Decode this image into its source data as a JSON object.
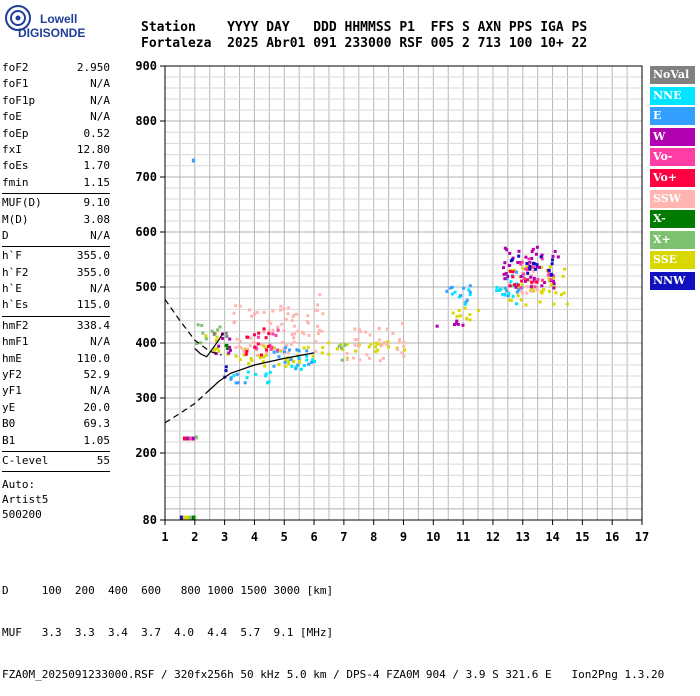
{
  "logo": {
    "line1": "Lowell",
    "line2": "DIGISONDE"
  },
  "header": {
    "labels": [
      "Station",
      "YYYY",
      "DAY",
      "DDD",
      "HHMMSS",
      "P1",
      "FFS",
      "S",
      "AXN",
      "PPS",
      "IGA",
      "PS"
    ],
    "values": [
      "Fortaleza",
      "2025",
      "Abr01",
      "091",
      "233000",
      "RSF",
      "005",
      "2",
      "713",
      "100",
      "10+",
      "22"
    ]
  },
  "params": {
    "group1": [
      {
        "k": "foF2",
        "v": "2.950"
      },
      {
        "k": "foF1",
        "v": "N/A"
      },
      {
        "k": "foF1p",
        "v": "N/A"
      },
      {
        "k": "foE",
        "v": "N/A"
      },
      {
        "k": "foEp",
        "v": "0.52"
      },
      {
        "k": "fxI",
        "v": "12.80"
      },
      {
        "k": "foEs",
        "v": "1.70"
      },
      {
        "k": "fmin",
        "v": "1.15"
      }
    ],
    "group2": [
      {
        "k": "MUF(D)",
        "v": "9.10"
      },
      {
        "k": "M(D)",
        "v": "3.08"
      },
      {
        "k": "D",
        "v": "N/A"
      }
    ],
    "group3": [
      {
        "k": "h`F",
        "v": "355.0"
      },
      {
        "k": "h`F2",
        "v": "355.0"
      },
      {
        "k": "h`E",
        "v": "N/A"
      },
      {
        "k": "h`Es",
        "v": "115.0"
      }
    ],
    "group4": [
      {
        "k": "hmF2",
        "v": "338.4"
      },
      {
        "k": "hmF1",
        "v": "N/A"
      },
      {
        "k": "hmE",
        "v": "110.0"
      },
      {
        "k": "yF2",
        "v": "52.9"
      },
      {
        "k": "yF1",
        "v": "N/A"
      },
      {
        "k": "yE",
        "v": "20.0"
      },
      {
        "k": "B0",
        "v": "69.3"
      },
      {
        "k": "B1",
        "v": "1.05"
      }
    ],
    "group5": [
      {
        "k": "C-level",
        "v": "55"
      }
    ],
    "auto": [
      "Auto:",
      "Artist5",
      "500200"
    ]
  },
  "legend": [
    {
      "label": "NoVal",
      "color": "#808080"
    },
    {
      "label": "NNE",
      "color": "#00e5ff"
    },
    {
      "label": "E",
      "color": "#33a0ff"
    },
    {
      "label": "W",
      "color": "#b000b0"
    },
    {
      "label": "Vo-",
      "color": "#ff3ea5"
    },
    {
      "label": "Vo+",
      "color": "#ff0040"
    },
    {
      "label": "SSW",
      "color": "#ffb6b0"
    },
    {
      "label": "X-",
      "color": "#007a00"
    },
    {
      "label": "X+",
      "color": "#7cc070"
    },
    {
      "label": "SSE",
      "color": "#d8d800"
    },
    {
      "label": "NNW",
      "color": "#1010c0"
    }
  ],
  "footer": {
    "line1": "D     100  200  400  600   800 1000 1500 3000 [km]",
    "line2": "MUF   3.3  3.3  3.4  3.7  4.0  4.4  5.7  9.1 [MHz]",
    "line3": "FZA0M_2025091233000.RSF / 320fx256h 50 kHz 5.0 km / DPS-4 FZA0M 904 / 3.9 S 321.6 E   Ion2Png 1.3.20"
  },
  "chart_data": {
    "type": "scatter",
    "xlim": [
      1,
      17
    ],
    "ylim": [
      80,
      900
    ],
    "x_ticks": [
      1,
      2,
      3,
      4,
      5,
      6,
      7,
      8,
      9,
      10,
      11,
      12,
      13,
      14,
      15,
      16,
      17
    ],
    "y_ticks": [
      80,
      200,
      300,
      400,
      500,
      600,
      700,
      800,
      900
    ],
    "grid": true,
    "series": [
      {
        "name": "SSE",
        "clusters": [
          [
            2.2,
            380,
            2.9,
            420
          ],
          [
            3.0,
            360,
            6.0,
            400
          ],
          [
            6.2,
            375,
            9.0,
            405
          ],
          [
            10.5,
            440,
            11.5,
            470
          ],
          [
            12.3,
            470,
            14.5,
            540
          ]
        ],
        "points": [
          [
            1.6,
            88
          ],
          [
            1.7,
            88
          ]
        ]
      },
      {
        "name": "SSW",
        "clusters": [
          [
            3.2,
            380,
            5.8,
            470
          ],
          [
            6.0,
            370,
            6.3,
            500
          ],
          [
            7.0,
            370,
            7.9,
            430
          ],
          [
            8.0,
            370,
            9.0,
            440
          ],
          [
            12.5,
            490,
            13.5,
            540
          ]
        ],
        "points": []
      },
      {
        "name": "E",
        "clusters": [
          [
            2.8,
            330,
            3.8,
            350
          ],
          [
            4.5,
            355,
            6.0,
            395
          ],
          [
            10.3,
            475,
            11.3,
            505
          ],
          [
            12.2,
            480,
            13.0,
            540
          ]
        ],
        "points": [
          [
            1.9,
            733
          ]
        ]
      },
      {
        "name": "NNE",
        "clusters": [
          [
            3.0,
            330,
            4.5,
            350
          ],
          [
            5.0,
            350,
            6.0,
            380
          ],
          [
            10.5,
            470,
            11.2,
            500
          ],
          [
            12.0,
            470,
            12.8,
            520
          ]
        ],
        "points": []
      },
      {
        "name": "W",
        "clusters": [
          [
            2.5,
            380,
            3.2,
            420
          ],
          [
            10.0,
            430,
            11.0,
            450
          ],
          [
            12.3,
            500,
            14.2,
            580
          ]
        ],
        "points": [
          [
            1.7,
            230
          ],
          [
            1.9,
            230
          ]
        ]
      },
      {
        "name": "Vo-",
        "clusters": [
          [
            4.0,
            390,
            5.0,
            430
          ],
          [
            12.8,
            500,
            14.0,
            560
          ]
        ],
        "points": [
          [
            1.8,
            230
          ]
        ]
      },
      {
        "name": "Vo+",
        "clusters": [
          [
            3.5,
            380,
            4.5,
            430
          ],
          [
            12.5,
            500,
            13.5,
            540
          ]
        ],
        "points": [
          [
            1.6,
            230
          ]
        ]
      },
      {
        "name": "X+",
        "clusters": [
          [
            2.0,
            400,
            2.8,
            440
          ],
          [
            6.5,
            370,
            7.0,
            400
          ]
        ],
        "points": [
          [
            1.8,
            88
          ],
          [
            1.95,
            88
          ],
          [
            2.0,
            232
          ]
        ]
      },
      {
        "name": "X-",
        "clusters": [
          [
            2.8,
            390,
            3.2,
            420
          ]
        ],
        "points": [
          [
            1.9,
            88
          ]
        ]
      },
      {
        "name": "NNW",
        "clusters": [
          [
            12.5,
            520,
            14.0,
            560
          ],
          [
            2.9,
            340,
            3.4,
            360
          ]
        ],
        "points": [
          [
            1.5,
            88
          ]
        ]
      },
      {
        "name": "NoVal",
        "clusters": [
          [
            2.9,
            400,
            3.1,
            430
          ]
        ],
        "points": [
          [
            2.6,
            420
          ]
        ]
      }
    ],
    "profile": {
      "dashed_upper": [
        [
          1.0,
          478
        ],
        [
          1.5,
          440
        ],
        [
          2.0,
          405
        ],
        [
          2.5,
          385
        ],
        [
          2.9,
          378
        ]
      ],
      "dashed_lower": [
        [
          1.0,
          255
        ],
        [
          1.5,
          272
        ],
        [
          2.0,
          290
        ],
        [
          2.4,
          310
        ]
      ],
      "solid": [
        [
          2.4,
          310
        ],
        [
          2.8,
          330
        ],
        [
          3.2,
          345
        ],
        [
          4.0,
          360
        ],
        [
          5.0,
          372
        ],
        [
          6.0,
          382
        ]
      ],
      "trace": [
        [
          2.0,
          390
        ],
        [
          2.2,
          380
        ],
        [
          2.4,
          375
        ],
        [
          2.6,
          390
        ],
        [
          2.8,
          405
        ],
        [
          2.95,
          418
        ]
      ]
    }
  }
}
